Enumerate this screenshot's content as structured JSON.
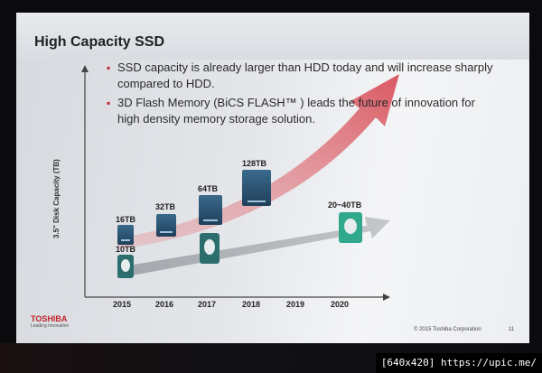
{
  "slide": {
    "title": "High Capacity SSD",
    "bullets": [
      "SSD capacity is already larger than HDD today and will increase sharply compared to HDD.",
      "3D Flash Memory (BiCS FLASH™ ) leads the future of innovation for high density memory storage solution."
    ],
    "y_axis_label": "3.5\" Disk Capacity (TB)",
    "years": [
      "2015",
      "2016",
      "2017",
      "2018",
      "2019",
      "2020"
    ],
    "ssd_capacities": [
      {
        "year": "2015",
        "label": "16TB"
      },
      {
        "year": "2016",
        "label": "32TB"
      },
      {
        "year": "2017",
        "label": "64TB"
      },
      {
        "year": "2018",
        "label": "128TB"
      }
    ],
    "hdd_capacities": [
      {
        "year": "2015",
        "label": "10TB"
      },
      {
        "year": "2020",
        "label": "20~40TB"
      }
    ],
    "brand": "TOSHIBA",
    "tagline": "Leading Innovation",
    "copyright": "© 2015 Toshiba Corporation",
    "page_number": "11"
  },
  "watermark": "[640x420] https://upic.me/",
  "colors": {
    "ssd_arrow": "#e0737a",
    "hdd_arrow": "#9a9ea4",
    "bullet": "#c0242b",
    "ssd": "#2a5576",
    "hdd_teal": "#2c6e6e",
    "hdd_green": "#2fa88c"
  }
}
